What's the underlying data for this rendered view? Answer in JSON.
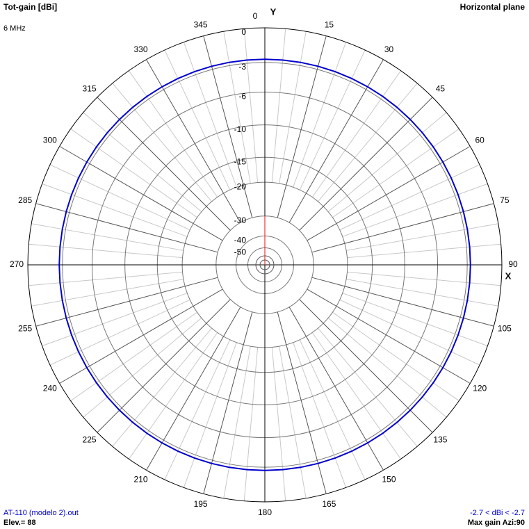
{
  "chart_data": {
    "type": "polar",
    "title": "Tot-gain [dBi]",
    "subtitle": "6 MHz",
    "plane": "Horizontal plane",
    "y_axis_label": "Y",
    "x_axis_label": "X",
    "file": "AT-110 (modelo 2).out",
    "elevation": "Elev.= 88",
    "range_text": "-2.7 < dBi < -2.7",
    "max_gain": "Max gain Azi:90",
    "rlim": [
      -50,
      0
    ],
    "rticks": [
      0,
      -3,
      -6,
      -10,
      -15,
      -20,
      -30,
      -40,
      -50
    ],
    "thetaticks": [
      0,
      15,
      30,
      45,
      60,
      75,
      90,
      105,
      120,
      135,
      150,
      165,
      180,
      195,
      210,
      225,
      240,
      255,
      270,
      285,
      300,
      315,
      330,
      345
    ],
    "series": [
      {
        "color": "#0000cc",
        "theta": [
          0,
          5,
          10,
          15,
          20,
          25,
          30,
          35,
          40,
          45,
          50,
          55,
          60,
          65,
          70,
          75,
          80,
          85,
          90,
          95,
          100,
          105,
          110,
          115,
          120,
          125,
          130,
          135,
          140,
          145,
          150,
          155,
          160,
          165,
          170,
          175,
          180,
          185,
          190,
          195,
          200,
          205,
          210,
          215,
          220,
          225,
          230,
          235,
          240,
          245,
          250,
          255,
          260,
          265,
          270,
          275,
          280,
          285,
          290,
          295,
          300,
          305,
          310,
          315,
          320,
          325,
          330,
          335,
          340,
          345,
          350,
          355
        ],
        "values": [
          -2.7,
          -2.7,
          -2.7,
          -2.7,
          -2.7,
          -2.7,
          -2.7,
          -2.7,
          -2.7,
          -2.7,
          -2.7,
          -2.7,
          -2.7,
          -2.7,
          -2.7,
          -2.7,
          -2.7,
          -2.7,
          -2.7,
          -2.7,
          -2.7,
          -2.7,
          -2.7,
          -2.7,
          -2.7,
          -2.7,
          -2.7,
          -2.7,
          -2.7,
          -2.7,
          -2.7,
          -2.7,
          -2.7,
          -2.7,
          -2.7,
          -2.7,
          -2.7,
          -2.7,
          -2.7,
          -2.7,
          -2.7,
          -2.7,
          -2.7,
          -2.7,
          -2.7,
          -2.7,
          -2.7,
          -2.7,
          -2.7,
          -2.7,
          -2.7,
          -2.7,
          -2.7,
          -2.7,
          -2.7,
          -2.7,
          -2.7,
          -2.7,
          -2.7,
          -2.7,
          -2.7,
          -2.7,
          -2.7,
          -2.7,
          -2.7,
          -2.7,
          -2.7,
          -2.7,
          -2.7,
          -2.7,
          -2.7,
          -2.7
        ]
      }
    ]
  }
}
